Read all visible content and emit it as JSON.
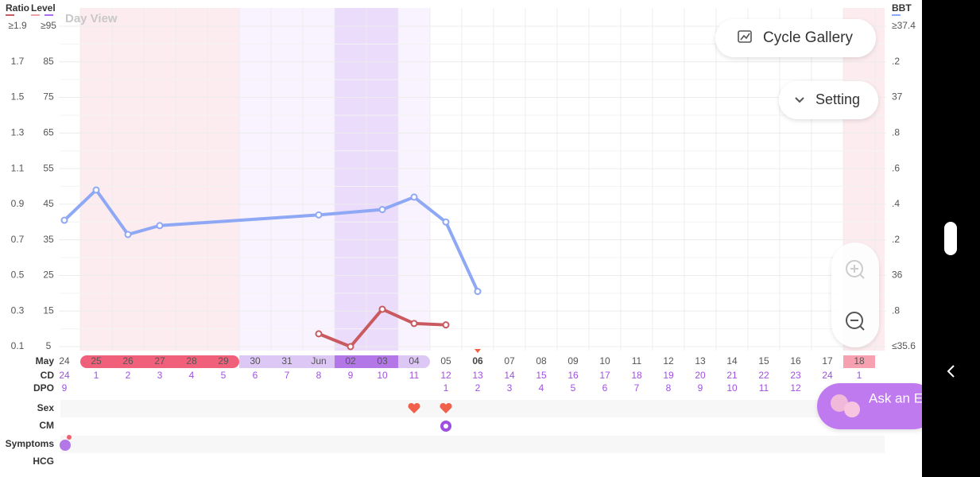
{
  "ui": {
    "view_label": "Day View",
    "cycle_gallery": "Cycle Gallery",
    "setting": "Setting",
    "ask_expert": "Ask an Expert"
  },
  "chart_data": {
    "type": "line",
    "ratio_title": "Ratio",
    "ratio_lim": [
      0.1,
      1.9
    ],
    "ratio_ticks": [
      {
        "value": 1.9,
        "label": "≥1.9"
      },
      1.7,
      1.5,
      1.3,
      1.1,
      0.9,
      0.7,
      0.5,
      0.3,
      0.1
    ],
    "ylim": [
      5,
      95
    ],
    "yticks": [
      {
        "value": 95,
        "label": "≥95"
      },
      85,
      75,
      65,
      55,
      45,
      35,
      25,
      15,
      5
    ],
    "y2lim": [
      35.6,
      37.4
    ],
    "y2ticks": [
      {
        "value": 37.4,
        "label": "≥37.4"
      },
      {
        "value": 37.2,
        "label": ".2"
      },
      37,
      {
        "value": 36.8,
        "label": ".8"
      },
      {
        "value": 36.6,
        "label": ".6"
      },
      {
        "value": 36.4,
        "label": ".4"
      },
      {
        "value": 36.2,
        "label": ".2"
      },
      36,
      {
        "value": 35.8,
        "label": ".8"
      },
      {
        "value": 35.6,
        "label": "≤35.6"
      }
    ],
    "month_label": "May",
    "categories": [
      "24",
      "25",
      "26",
      "27",
      "28",
      "29",
      "30",
      "31",
      "Jun",
      "02",
      "03",
      "04",
      "05",
      "06",
      "07",
      "08",
      "09",
      "10",
      "11",
      "12",
      "13",
      "14",
      "15",
      "16",
      "17",
      "18"
    ],
    "series": [
      {
        "name": "Level",
        "color": "#c95a5f",
        "x": [
          8,
          9,
          10,
          11,
          12
        ],
        "values": [
          8.6,
          5,
          15.5,
          11.5,
          11.1
        ]
      },
      {
        "name": "BBT",
        "color": "#8ea8f5",
        "axis": "y2",
        "x": [
          0,
          1,
          2,
          3,
          8,
          10,
          11,
          12,
          13
        ],
        "values": [
          36.31,
          36.48,
          36.23,
          36.28,
          36.34,
          36.37,
          36.44,
          36.3,
          35.91
        ]
      }
    ]
  },
  "rows": {
    "labels": [
      "CD",
      "DPO",
      "Sex",
      "CM",
      "Symptoms",
      "HCG"
    ],
    "cd": [
      24,
      1,
      2,
      3,
      4,
      5,
      6,
      7,
      8,
      9,
      10,
      11,
      12,
      13,
      14,
      15,
      16,
      17,
      18,
      19,
      20,
      21,
      22,
      23,
      24,
      1
    ],
    "dpo": [
      9,
      null,
      null,
      null,
      null,
      null,
      null,
      null,
      null,
      null,
      null,
      null,
      1,
      2,
      3,
      4,
      5,
      6,
      7,
      8,
      9,
      10,
      11,
      12,
      null,
      null
    ],
    "sex_days": [
      11,
      12
    ],
    "cm_days": [
      12
    ]
  }
}
